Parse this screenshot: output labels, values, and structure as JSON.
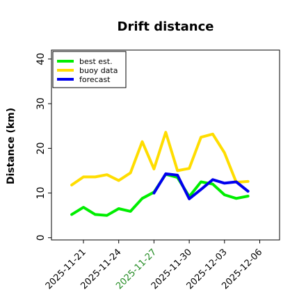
{
  "chart_data": {
    "type": "line",
    "title": "Drift distance",
    "xlabel": "",
    "ylabel": "Distance (km)",
    "ylim": [
      -0.5,
      42
    ],
    "yticks": [
      0,
      10,
      20,
      30,
      40
    ],
    "x_tick_labels": [
      "2025-11-21",
      "2025-11-24",
      "2025-11-27",
      "2025-11-30",
      "2025-12-03",
      "2025-12-06"
    ],
    "highlighted_tick": "2025-11-27",
    "colors": {
      "highlight_tick": "#228B22",
      "tick": "#000000"
    },
    "legend_position": "top-left",
    "grid": false,
    "series": [
      {
        "name": "best est.",
        "color": "#00ee00",
        "x": [
          "2025-11-20",
          "2025-11-21",
          "2025-11-22",
          "2025-11-23",
          "2025-11-24",
          "2025-11-25",
          "2025-11-26",
          "2025-11-27",
          "2025-11-28",
          "2025-11-29",
          "2025-11-30",
          "2025-12-01",
          "2025-12-02",
          "2025-12-03",
          "2025-12-04",
          "2025-12-05"
        ],
        "y": [
          5.2,
          6.8,
          5.2,
          5.0,
          6.5,
          5.9,
          8.8,
          10.2,
          14.2,
          13.5,
          9.2,
          12.5,
          12.0,
          9.6,
          8.8,
          9.3
        ]
      },
      {
        "name": "buoy data",
        "color": "#ffdd00",
        "x": [
          "2025-11-20",
          "2025-11-21",
          "2025-11-22",
          "2025-11-23",
          "2025-11-24",
          "2025-11-25",
          "2025-11-26",
          "2025-11-27",
          "2025-11-28",
          "2025-11-29",
          "2025-11-30",
          "2025-12-01",
          "2025-12-02",
          "2025-12-03",
          "2025-12-04",
          "2025-12-05"
        ],
        "y": [
          11.8,
          13.6,
          13.6,
          14.1,
          12.8,
          14.5,
          21.5,
          15.4,
          23.6,
          15.0,
          15.5,
          22.5,
          23.2,
          19.0,
          12.4,
          12.6
        ]
      },
      {
        "name": "forecast",
        "color": "#0000ee",
        "x": [
          "2025-11-27",
          "2025-11-28",
          "2025-11-29",
          "2025-11-30",
          "2025-12-01",
          "2025-12-02",
          "2025-12-03",
          "2025-12-04",
          "2025-12-05"
        ],
        "y": [
          10.0,
          14.3,
          14.0,
          8.7,
          10.8,
          13.0,
          12.2,
          12.5,
          10.4
        ]
      }
    ]
  }
}
